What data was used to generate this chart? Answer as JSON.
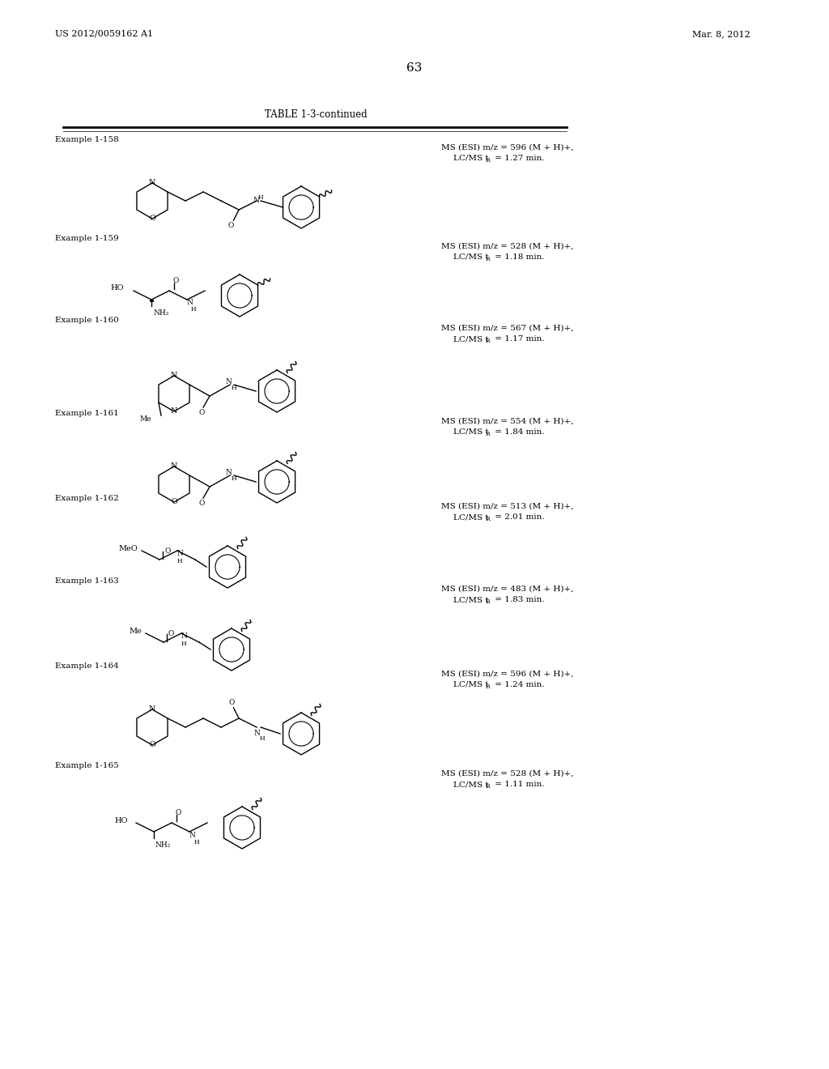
{
  "background_color": "#ffffff",
  "page_number": "63",
  "header_left": "US 2012/0059162 A1",
  "header_right": "Mar. 8, 2012",
  "table_title": "TABLE 1-3-continued",
  "examples": [
    {
      "id": "Example 1-158",
      "ms_data": "MS (ESI) m/z = 596 (M + H)",
      "lc_data": "LC/MS t",
      "lc_val": " = 1.27 min.",
      "R_sub": "R"
    },
    {
      "id": "Example 1-159",
      "ms_data": "MS (ESI) m/z = 528 (M + H)",
      "lc_data": "LC/MS t",
      "lc_val": " = 1.18 min.",
      "R_sub": "R"
    },
    {
      "id": "Example 1-160",
      "ms_data": "MS (ESI) m/z = 567 (M + H)",
      "lc_data": "LC/MS t",
      "lc_val": " = 1.17 min.",
      "R_sub": "R"
    },
    {
      "id": "Example 1-161",
      "ms_data": "MS (ESI) m/z = 554 (M + H)",
      "lc_data": "LC/MS t",
      "lc_val": " = 1.84 min.",
      "R_sub": "R"
    },
    {
      "id": "Example 1-162",
      "ms_data": "MS (ESI) m/z = 513 (M + H)",
      "lc_data": "LC/MS t",
      "lc_val": " = 2.01 min.",
      "R_sub": "R"
    },
    {
      "id": "Example 1-163",
      "ms_data": "MS (ESI) m/z = 483 (M + H)",
      "lc_data": "LC/MS t",
      "lc_val": " = 1.83 min.",
      "R_sub": "R"
    },
    {
      "id": "Example 1-164",
      "ms_data": "MS (ESI) m/z = 596 (M + H)",
      "lc_data": "LC/MS t",
      "lc_val": " = 1.24 min.",
      "R_sub": "R"
    },
    {
      "id": "Example 1-165",
      "ms_data": "MS (ESI) m/z = 528 (M + H)",
      "lc_data": "LC/MS t",
      "lc_val": " = 1.11 min.",
      "R_sub": "R"
    }
  ]
}
